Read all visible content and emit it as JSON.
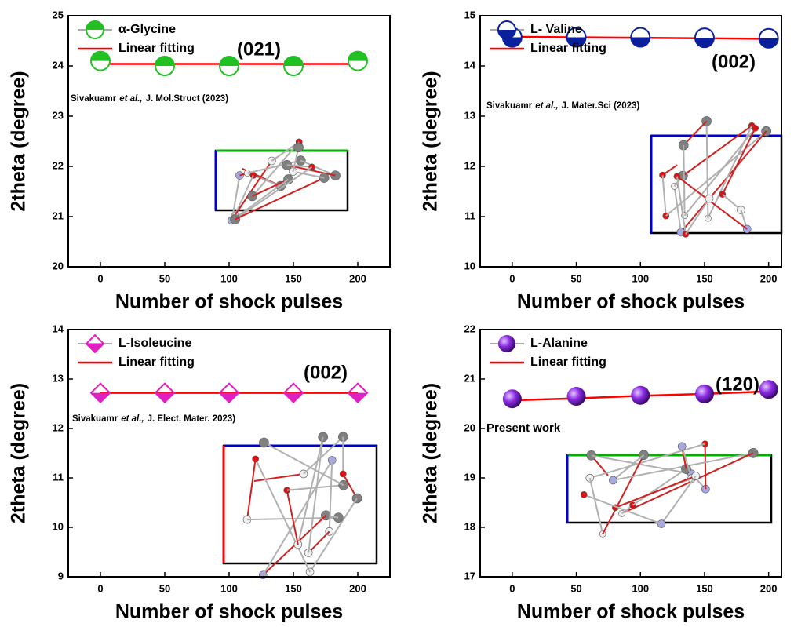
{
  "chart_data": [
    {
      "type": "line",
      "x_label": "Number of shock pulses",
      "y_label": "2theta (degree)",
      "x": [
        0,
        50,
        100,
        150,
        200
      ],
      "xlim": [
        -25,
        225
      ],
      "xticks": [
        0,
        50,
        100,
        150,
        200
      ],
      "ylim": [
        20,
        25
      ],
      "yticks": [
        20,
        21,
        22,
        23,
        24,
        25
      ],
      "series": [
        {
          "name": "α-Glycine",
          "color": "#22c022",
          "marker": "half-top",
          "values": [
            24.1,
            24.0,
            24.0,
            24.0,
            24.1
          ]
        },
        {
          "name": "Linear fitting",
          "color": "#ff0000",
          "values": [
            24.04,
            24.04,
            24.04,
            24.04,
            24.04
          ]
        }
      ],
      "annotation": "(021)",
      "citation": [
        "Sivakuamr",
        "et al.,",
        "J. Mol.Struct (2023)"
      ]
    },
    {
      "type": "line",
      "x_label": "Number of shock pulses",
      "y_label": "2theta (degree)",
      "x": [
        0,
        50,
        100,
        150,
        200
      ],
      "xlim": [
        -25,
        210
      ],
      "xticks": [
        0,
        50,
        100,
        150,
        200
      ],
      "ylim": [
        10,
        15
      ],
      "yticks": [
        10,
        11,
        12,
        13,
        14,
        15
      ],
      "series": [
        {
          "name": "L- Valine",
          "color": "#0a1f9c",
          "marker": "half-bottom",
          "values": [
            14.57,
            14.57,
            14.57,
            14.56,
            14.55
          ]
        },
        {
          "name": "Linear fitting",
          "color": "#ff0000",
          "values": [
            14.58,
            14.57,
            14.56,
            14.55,
            14.54
          ]
        }
      ],
      "annotation": "(002)",
      "citation": [
        "Sivakuamr",
        "et al.,",
        "J. Mater.Sci (2023)"
      ]
    },
    {
      "type": "line",
      "x_label": "Number of shock pulses",
      "y_label": "2theta (degree)",
      "x": [
        0,
        50,
        100,
        150,
        200
      ],
      "xlim": [
        -25,
        225
      ],
      "xticks": [
        0,
        50,
        100,
        150,
        200
      ],
      "ylim": [
        9,
        14
      ],
      "yticks": [
        9,
        10,
        11,
        12,
        13,
        14
      ],
      "series": [
        {
          "name": "L-Isoleucine",
          "color": "#e020c0",
          "marker": "diamond-half-bottom",
          "values": [
            12.72,
            12.72,
            12.72,
            12.72,
            12.72
          ]
        },
        {
          "name": "Linear fitting",
          "color": "#ff0000",
          "values": [
            12.72,
            12.72,
            12.72,
            12.72,
            12.72
          ]
        }
      ],
      "annotation": "(002)",
      "citation": [
        "Sivakuamr",
        "et al.,",
        "J. Elect. Mater. 2023)"
      ]
    },
    {
      "type": "line",
      "x_label": "Number of shock pulses",
      "y_label": "2theta (degree)",
      "x": [
        0,
        50,
        100,
        150,
        200
      ],
      "xlim": [
        -25,
        210
      ],
      "xticks": [
        0,
        50,
        100,
        150,
        200
      ],
      "ylim": [
        17,
        22
      ],
      "yticks": [
        17,
        18,
        19,
        20,
        21,
        22
      ],
      "series": [
        {
          "name": "L-Alanine",
          "color": "#7a20c8",
          "marker": "sphere",
          "values": [
            20.6,
            20.65,
            20.67,
            20.7,
            20.79
          ]
        },
        {
          "name": "Linear fitting",
          "color": "#ff0000",
          "values": [
            20.57,
            20.61,
            20.66,
            20.7,
            20.75
          ]
        }
      ],
      "annotation": "(120)",
      "note": "Present work"
    }
  ]
}
